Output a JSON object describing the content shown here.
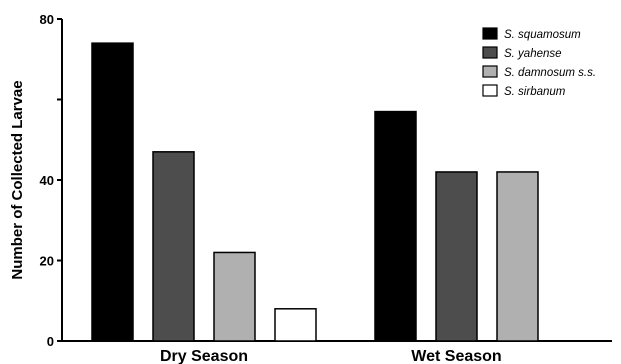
{
  "chart_data": {
    "type": "bar",
    "title": "",
    "xlabel": "",
    "ylabel": "Number of Collected Larvae",
    "ylim": [
      0,
      80
    ],
    "y_ticks": [
      0,
      20,
      40,
      80
    ],
    "categories": [
      "Dry Season",
      "Wet Season"
    ],
    "series": [
      {
        "name": "S. squamosum",
        "color": "#000000",
        "values": [
          74,
          57
        ]
      },
      {
        "name": "S. yahense",
        "color": "#4d4d4d",
        "values": [
          47,
          42
        ]
      },
      {
        "name": "S. damnosum s.s.",
        "color": "#b0b0b0",
        "values": [
          22,
          42
        ]
      },
      {
        "name": "S. sirbanum",
        "color": "#ffffff",
        "values": [
          8,
          null
        ]
      }
    ],
    "legend_position": "top-right",
    "grid": false
  }
}
